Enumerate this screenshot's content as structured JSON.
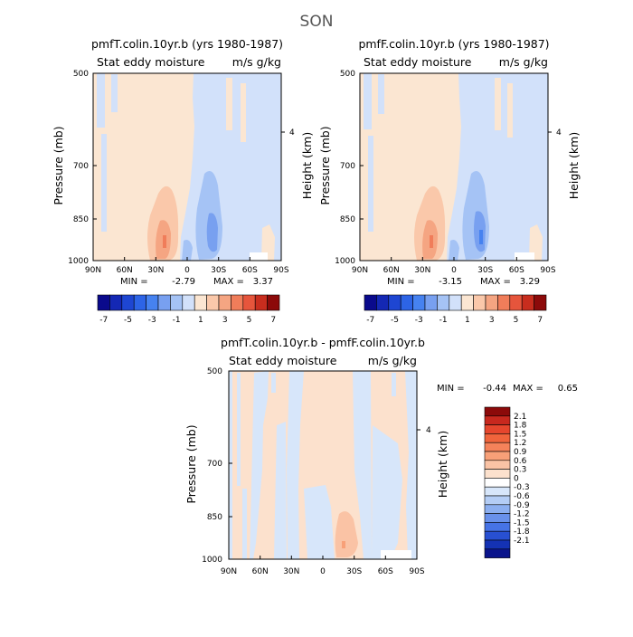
{
  "figure": {
    "title": "SON"
  },
  "panels": [
    {
      "title": "pmfT.colin.10yr.b (yrs 1980-1987)",
      "left_label": "Stat eddy moisture",
      "right_label": "m/s g/kg",
      "ylabel": "Pressure (mb)",
      "y2label": "Height (km)",
      "y2_ticks": [
        "4"
      ],
      "y_ticks": [
        "500",
        "700",
        "850",
        "1000"
      ],
      "x_ticks": [
        "90N",
        "60N",
        "30N",
        "0",
        "30S",
        "60S",
        "90S"
      ],
      "min_label": "MIN =",
      "min_value": "-2.79",
      "max_label": "MAX =",
      "max_value": "3.37"
    },
    {
      "title": "pmfF.colin.10yr.b (yrs 1980-1987)",
      "left_label": "Stat eddy moisture",
      "right_label": "m/s g/kg",
      "ylabel": "Pressure (mb)",
      "y2label": "Height (km)",
      "y2_ticks": [
        "4"
      ],
      "y_ticks": [
        "500",
        "700",
        "850",
        "1000"
      ],
      "x_ticks": [
        "90N",
        "60N",
        "30N",
        "0",
        "30S",
        "60S",
        "90S"
      ],
      "min_label": "MIN =",
      "min_value": "-3.15",
      "max_label": "MAX =",
      "max_value": "3.29"
    },
    {
      "title": "pmfT.colin.10yr.b - pmfF.colin.10yr.b",
      "left_label": "Stat eddy moisture",
      "right_label": "m/s g/kg",
      "ylabel": "Pressure (mb)",
      "y2label": "Height (km)",
      "y2_ticks": [
        "4"
      ],
      "y_ticks": [
        "500",
        "700",
        "850",
        "1000"
      ],
      "x_ticks": [
        "90N",
        "60N",
        "30N",
        "0",
        "30S",
        "60S",
        "90S"
      ],
      "min_label": "MIN =",
      "min_value": "-0.44",
      "max_label": "MAX =",
      "max_value": "0.65"
    }
  ],
  "colorbar_top": {
    "colors": [
      "#0a0a8c",
      "#1428b4",
      "#1e46d2",
      "#2d64e6",
      "#4682f0",
      "#78a0f0",
      "#a5c3f5",
      "#d2e1fa",
      "#fbe6d2",
      "#fac8aa",
      "#f5a582",
      "#f07d5a",
      "#e6553c",
      "#c82d1e",
      "#8c0a0a"
    ],
    "labels": [
      "-7",
      "-5",
      "-3",
      "-1",
      "1",
      "3",
      "5",
      "7"
    ]
  },
  "colorbar_diff": {
    "colors_top_down": [
      "#8c0a0a",
      "#c8281e",
      "#e6462d",
      "#f0643c",
      "#f5825a",
      "#f8a078",
      "#fac3a5",
      "#fce1cd",
      "#ffffff",
      "#d7e6fa",
      "#b4cdf5",
      "#8caff0",
      "#6991eb",
      "#4673e6",
      "#2850d2",
      "#1432b4",
      "#0a148c"
    ],
    "labels": [
      "2.1",
      "1.8",
      "1.5",
      "1.2",
      "0.9",
      "0.6",
      "0.3",
      "0",
      "-0.3",
      "-0.6",
      "-0.9",
      "-1.2",
      "-1.5",
      "-1.8",
      "-2.1"
    ]
  },
  "chart_data": [
    {
      "type": "heatmap",
      "title": "pmfT.colin.10yr.b (yrs 1980-1987)",
      "xlabel": "",
      "ylabel": "Pressure (mb)",
      "x": [
        "90N",
        "60N",
        "30N",
        "0",
        "30S",
        "60S",
        "90S"
      ],
      "ylim": [
        1000,
        500
      ],
      "y2label": "Height (km)",
      "min": -2.79,
      "max": 3.37,
      "features": [
        {
          "kind": "positive",
          "lat": 30,
          "p": 860,
          "value": 3.37
        },
        {
          "kind": "negative",
          "lat": -20,
          "p": 880,
          "value": -2.79
        }
      ]
    },
    {
      "type": "heatmap",
      "title": "pmfF.colin.10yr.b (yrs 1980-1987)",
      "xlabel": "",
      "ylabel": "Pressure (mb)",
      "x": [
        "90N",
        "60N",
        "30N",
        "0",
        "30S",
        "60S",
        "90S"
      ],
      "ylim": [
        1000,
        500
      ],
      "y2label": "Height (km)",
      "min": -3.15,
      "max": 3.29,
      "features": [
        {
          "kind": "positive",
          "lat": 30,
          "p": 860,
          "value": 3.29
        },
        {
          "kind": "negative",
          "lat": -20,
          "p": 880,
          "value": -3.15
        }
      ]
    },
    {
      "type": "heatmap",
      "title": "pmfT.colin.10yr.b - pmfF.colin.10yr.b",
      "xlabel": "",
      "ylabel": "Pressure (mb)",
      "x": [
        "90N",
        "60N",
        "30N",
        "0",
        "30S",
        "60S",
        "90S"
      ],
      "ylim": [
        1000,
        500
      ],
      "y2label": "Height (km)",
      "min": -0.44,
      "max": 0.65,
      "features": [
        {
          "kind": "positive",
          "lat": -20,
          "p": 950,
          "value": 0.65
        }
      ]
    }
  ]
}
